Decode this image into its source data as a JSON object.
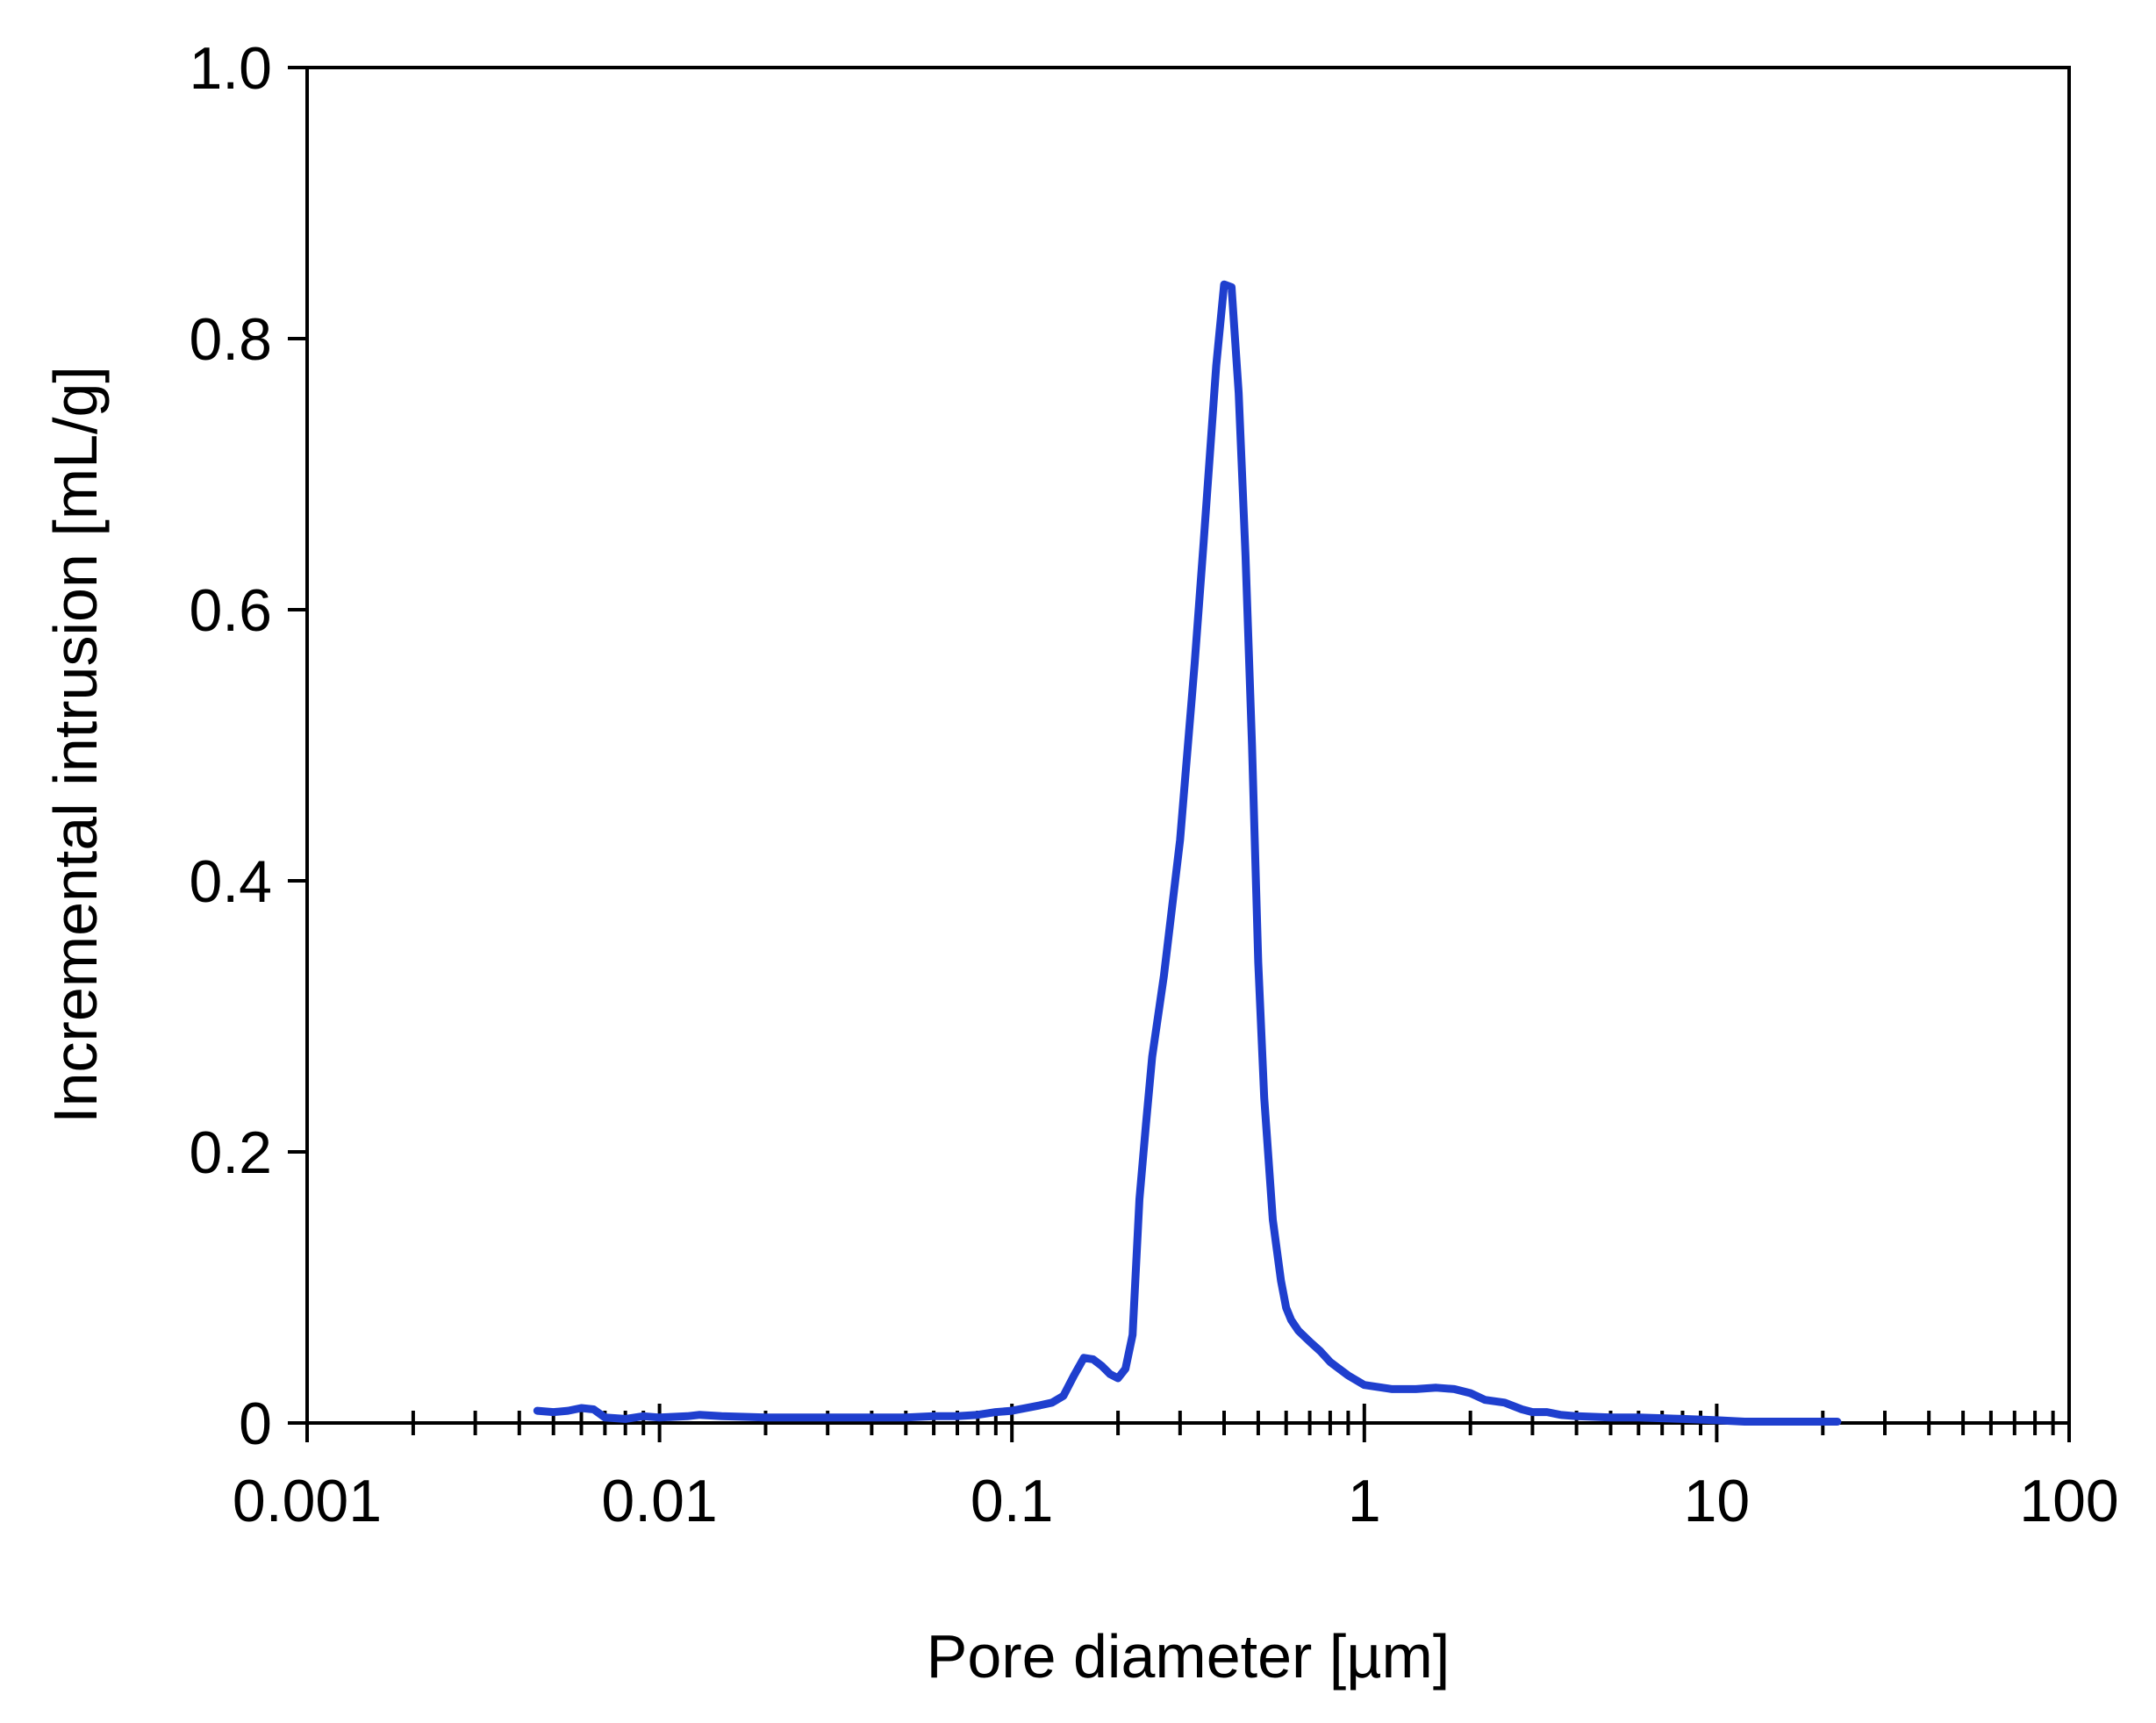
{
  "chart_data": {
    "type": "line",
    "title": "",
    "xlabel": "Pore diameter [µm]",
    "ylabel": "Incremental intrusion [mL/g]",
    "xscale": "log",
    "xlim": [
      0.001,
      100
    ],
    "ylim": [
      0,
      1.0
    ],
    "xticks": [
      {
        "value": 0.001,
        "label": "0.001"
      },
      {
        "value": 0.01,
        "label": "0.01"
      },
      {
        "value": 0.1,
        "label": "0.1"
      },
      {
        "value": 1,
        "label": "1"
      },
      {
        "value": 10,
        "label": "10"
      },
      {
        "value": 100,
        "label": "100"
      }
    ],
    "yticks": [
      {
        "value": 0,
        "label": "0"
      },
      {
        "value": 0.2,
        "label": "0.2"
      },
      {
        "value": 0.4,
        "label": "0.4"
      },
      {
        "value": 0.6,
        "label": "0.6"
      },
      {
        "value": 0.8,
        "label": "0.8"
      },
      {
        "value": 1.0,
        "label": "1.0"
      }
    ],
    "grid": false,
    "legend": "none",
    "series": [
      {
        "color": "#1f3fce",
        "x": [
          0.0045,
          0.005,
          0.0055,
          0.006,
          0.0065,
          0.007,
          0.008,
          0.009,
          0.01,
          0.012,
          0.013,
          0.015,
          0.02,
          0.03,
          0.04,
          0.05,
          0.06,
          0.07,
          0.08,
          0.09,
          0.1,
          0.12,
          0.13,
          0.14,
          0.15,
          0.16,
          0.17,
          0.18,
          0.19,
          0.2,
          0.21,
          0.22,
          0.23,
          0.24,
          0.25,
          0.27,
          0.3,
          0.33,
          0.35,
          0.38,
          0.4,
          0.42,
          0.44,
          0.46,
          0.48,
          0.5,
          0.52,
          0.55,
          0.58,
          0.6,
          0.62,
          0.65,
          0.7,
          0.75,
          0.8,
          0.9,
          1.0,
          1.2,
          1.4,
          1.6,
          1.8,
          2.0,
          2.2,
          2.5,
          2.8,
          3.0,
          3.3,
          3.6,
          4.0,
          5.0,
          6.0,
          8.0,
          10.0,
          12.0,
          14.0,
          16.0,
          20.0,
          22.0
        ],
        "y": [
          0.009,
          0.008,
          0.009,
          0.011,
          0.01,
          0.004,
          0.003,
          0.005,
          0.004,
          0.005,
          0.006,
          0.005,
          0.004,
          0.004,
          0.004,
          0.004,
          0.005,
          0.005,
          0.006,
          0.008,
          0.009,
          0.013,
          0.015,
          0.02,
          0.035,
          0.048,
          0.047,
          0.042,
          0.036,
          0.033,
          0.04,
          0.065,
          0.165,
          0.22,
          0.27,
          0.33,
          0.43,
          0.56,
          0.65,
          0.78,
          0.84,
          0.838,
          0.76,
          0.64,
          0.5,
          0.34,
          0.24,
          0.15,
          0.105,
          0.085,
          0.076,
          0.068,
          0.06,
          0.053,
          0.045,
          0.035,
          0.028,
          0.025,
          0.025,
          0.026,
          0.025,
          0.022,
          0.017,
          0.015,
          0.01,
          0.008,
          0.008,
          0.006,
          0.005,
          0.004,
          0.004,
          0.003,
          0.002,
          0.001,
          0.001,
          0.001,
          0.001,
          0.001
        ]
      }
    ]
  }
}
